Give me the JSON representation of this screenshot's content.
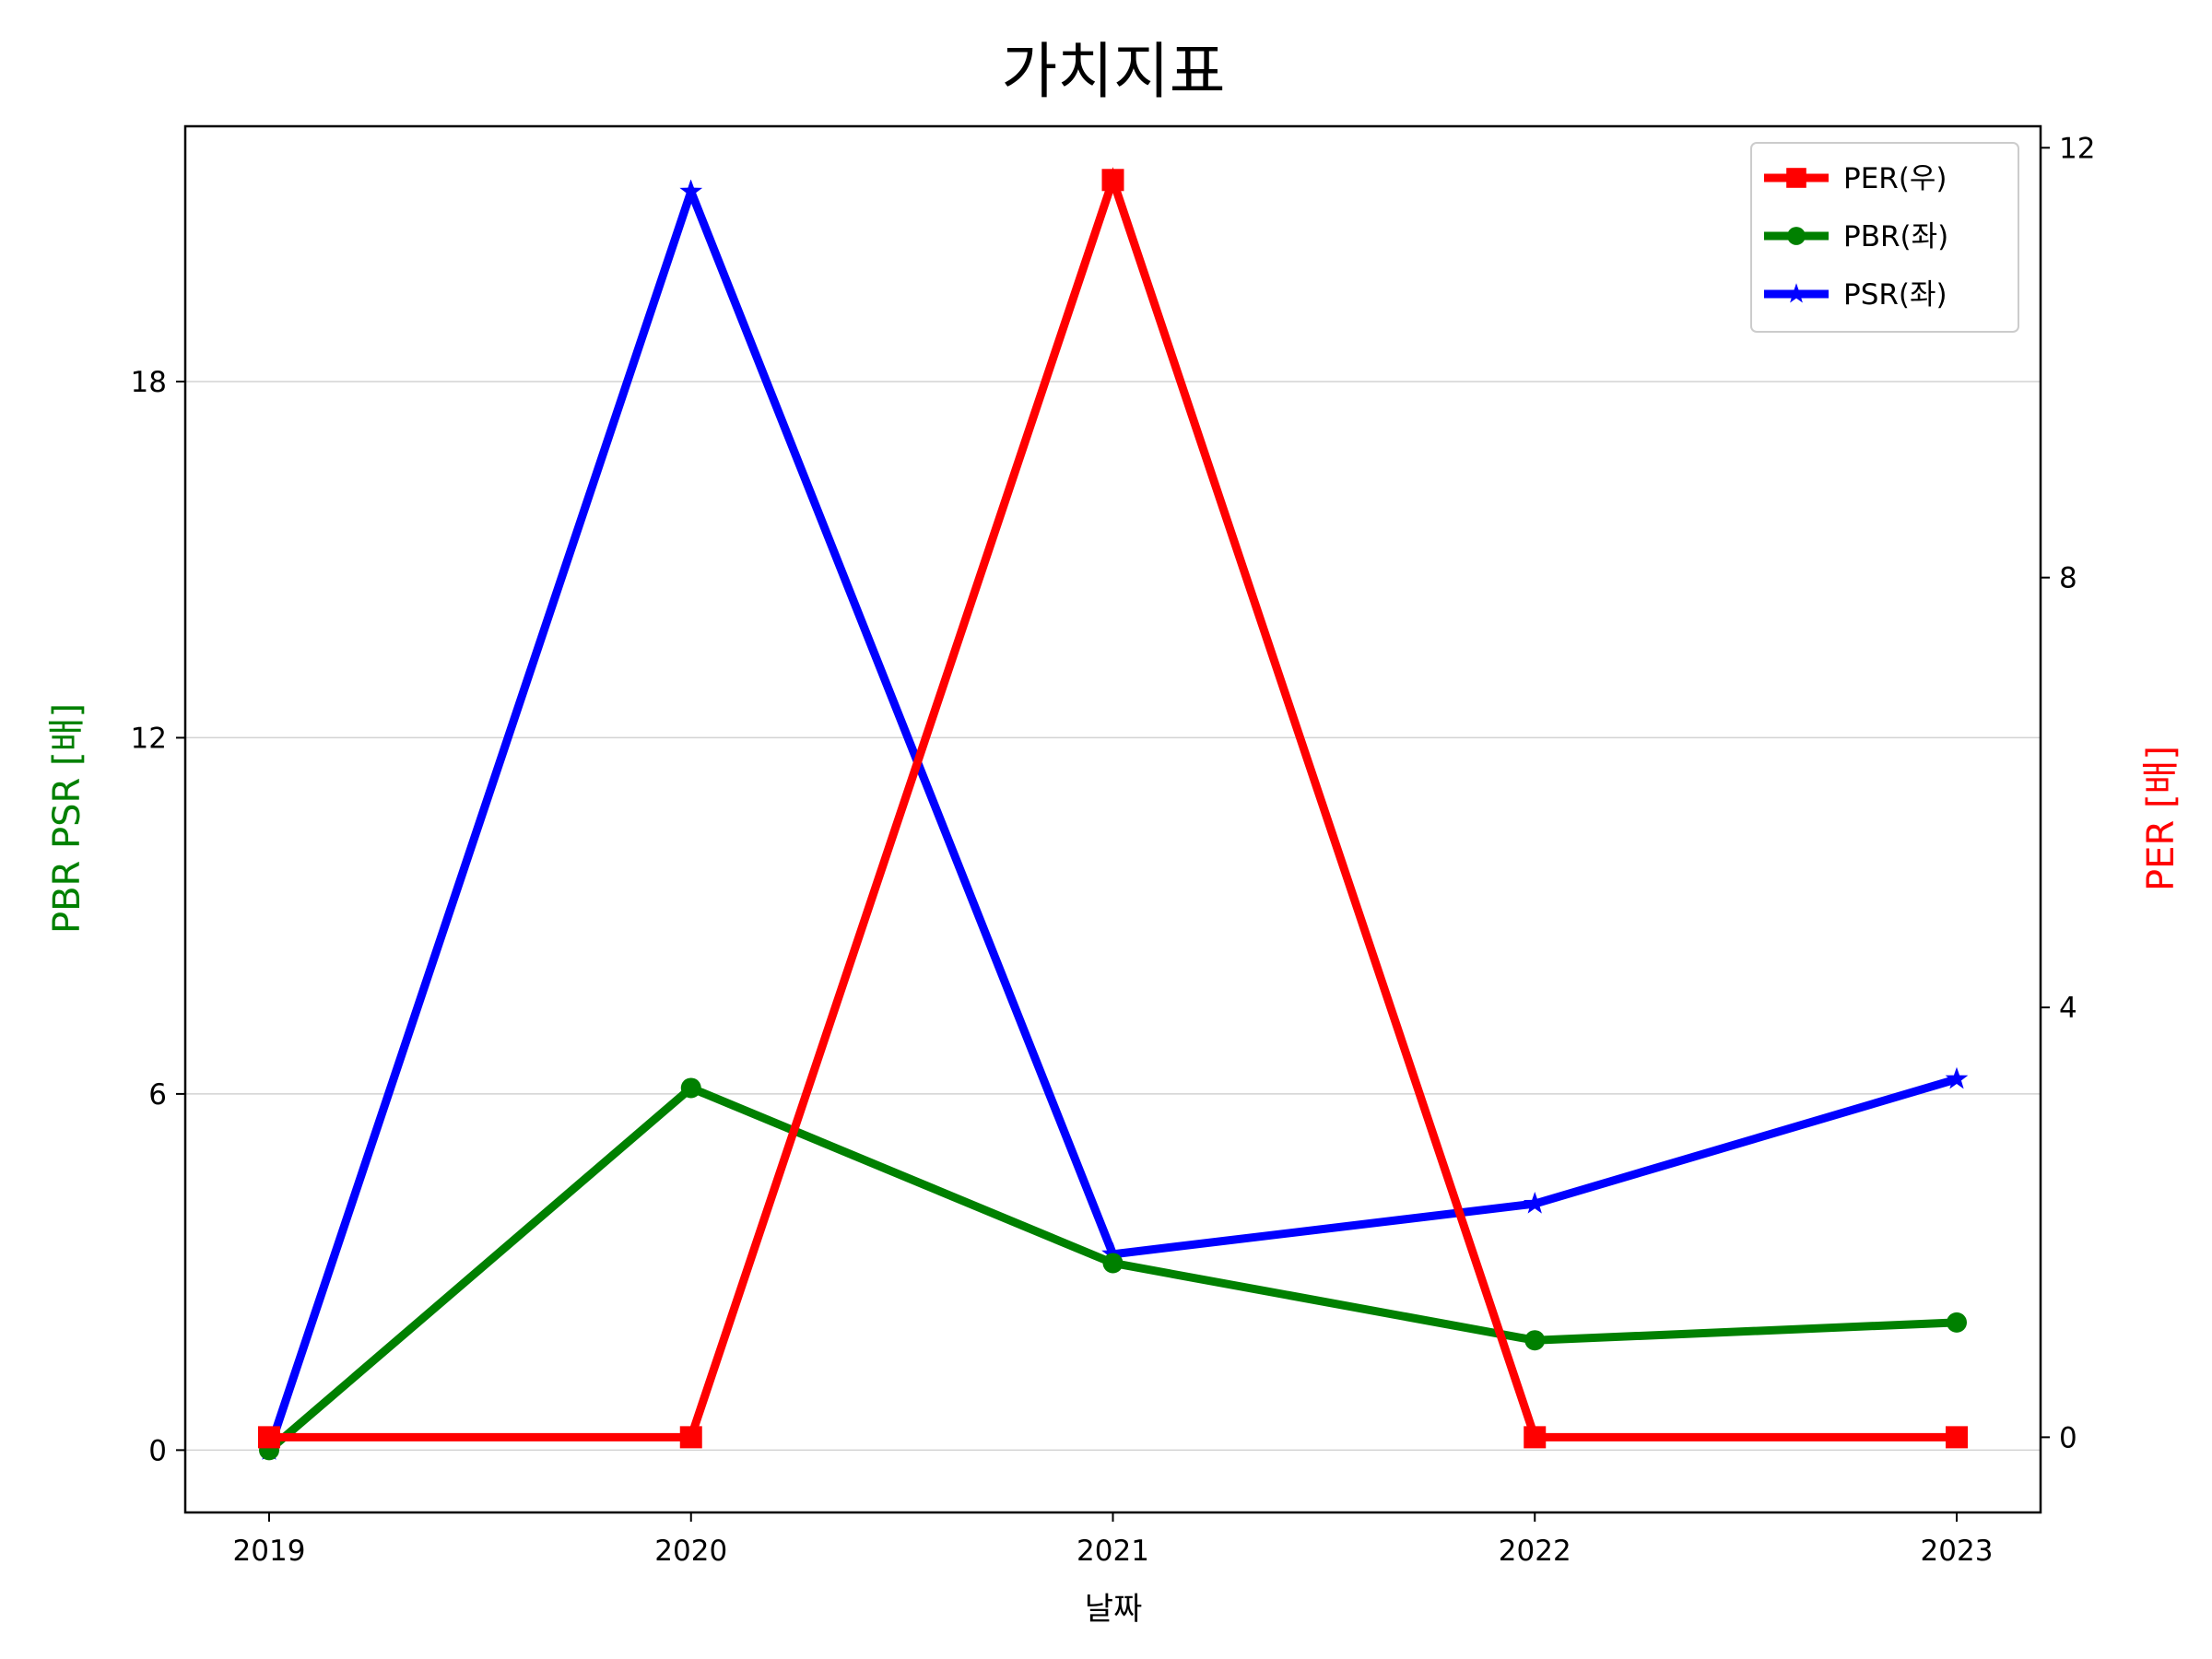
{
  "chart_data": {
    "type": "line",
    "title": "가치지표",
    "xlabel": "날짜",
    "ylabel_left": "PBR PSR [배]",
    "ylabel_right": "PER [배]",
    "categories": [
      "2019",
      "2020",
      "2021",
      "2022",
      "2023"
    ],
    "left_axis": {
      "ylim": [
        -1.05,
        22.3
      ],
      "ticks": [
        0,
        6,
        12,
        18
      ]
    },
    "right_axis": {
      "ylim": [
        -0.7,
        12.2
      ],
      "ticks": [
        0,
        4,
        8,
        12
      ]
    },
    "grid": "horizontal",
    "legend_position": "top-right",
    "series": [
      {
        "name": "PER(우)",
        "axis": "right",
        "color": "#ff0000",
        "marker": "square",
        "values": [
          0,
          0,
          11.7,
          0,
          0
        ]
      },
      {
        "name": "PBR(좌)",
        "axis": "left",
        "color": "#008000",
        "marker": "circle",
        "values": [
          0,
          6.1,
          3.15,
          1.85,
          2.15
        ]
      },
      {
        "name": "PSR(좌)",
        "axis": "left",
        "color": "#0000ff",
        "marker": "star",
        "values": [
          0,
          21.2,
          3.3,
          4.15,
          6.25
        ]
      }
    ]
  }
}
